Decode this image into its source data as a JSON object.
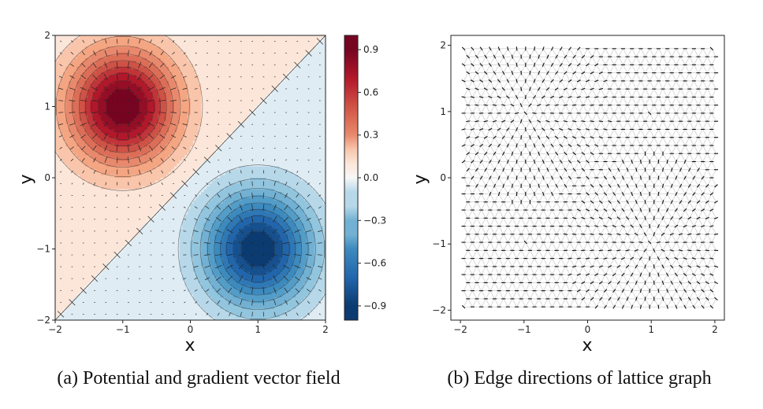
{
  "chart_data": [
    {
      "type": "heatmap",
      "caption": "(a) Potential and gradient vector field",
      "xlabel": "x",
      "ylabel": "y",
      "xlim": [
        -2,
        2
      ],
      "ylim": [
        -2,
        2
      ],
      "xticks": [
        "−2",
        "−1",
        "0",
        "1",
        "2"
      ],
      "yticks": [
        "−2",
        "−1",
        "0",
        "1",
        "2"
      ],
      "potential": {
        "peaks": [
          {
            "x": -1,
            "y": 1,
            "value": 1.0
          },
          {
            "x": 1,
            "y": -1,
            "value": -1.0
          }
        ],
        "zero_line": "y = x"
      },
      "colormap": "RdBu_r",
      "colorbar": {
        "range": [
          -1.0,
          1.0
        ],
        "ticks": [
          {
            "value": 0.9,
            "label": "0.9"
          },
          {
            "value": 0.6,
            "label": "0.6"
          },
          {
            "value": 0.3,
            "label": "0.3"
          },
          {
            "value": 0.0,
            "label": "0.0"
          },
          {
            "value": -0.3,
            "label": "−0.3"
          },
          {
            "value": -0.6,
            "label": "−0.6"
          },
          {
            "value": -0.9,
            "label": "−0.9"
          }
        ]
      },
      "quiver": true,
      "contours": true
    },
    {
      "type": "scatter",
      "caption": "(b) Edge directions of lattice graph",
      "xlabel": "x",
      "ylabel": "y",
      "xlim": [
        -2.15,
        2.15
      ],
      "ylim": [
        -2.15,
        2.15
      ],
      "xticks": [
        "−2",
        "−1",
        "0",
        "1",
        "2"
      ],
      "yticks": [
        "−2",
        "−1",
        "0",
        "1",
        "2"
      ],
      "lattice": "triangular",
      "lattice_range": [
        -1.95,
        1.95
      ],
      "arrows": true
    }
  ]
}
